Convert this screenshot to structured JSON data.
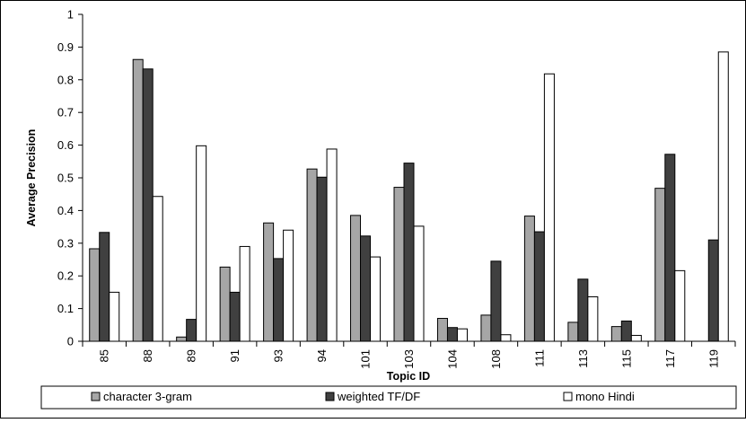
{
  "chart_data": {
    "type": "bar",
    "title": "",
    "xlabel": "Topic ID",
    "ylabel": "Average Precision",
    "ylim": [
      0,
      1
    ],
    "yticks": [
      "0",
      "0.1",
      "0.2",
      "0.3",
      "0.4",
      "0.5",
      "0.6",
      "0.7",
      "0.8",
      "0.9",
      "1"
    ],
    "grid": false,
    "legend_position": "bottom",
    "categories": [
      "85",
      "88",
      "89",
      "91",
      "93",
      "94",
      "101",
      "103",
      "104",
      "108",
      "111",
      "113",
      "115",
      "117",
      "119"
    ],
    "series": [
      {
        "name": "character 3-gram",
        "color": "#a6a6a6",
        "values": [
          0.283,
          0.862,
          0.013,
          0.227,
          0.362,
          0.527,
          0.385,
          0.471,
          0.07,
          0.08,
          0.383,
          0.058,
          0.045,
          0.468,
          0.0
        ]
      },
      {
        "name": "weighted TF/DF",
        "color": "#404040",
        "values": [
          0.333,
          0.833,
          0.067,
          0.15,
          0.253,
          0.502,
          0.322,
          0.545,
          0.042,
          0.245,
          0.335,
          0.19,
          0.062,
          0.572,
          0.31
        ]
      },
      {
        "name": "mono Hindi",
        "color": "#ffffff",
        "values": [
          0.15,
          0.443,
          0.598,
          0.29,
          0.34,
          0.588,
          0.258,
          0.352,
          0.038,
          0.02,
          0.818,
          0.136,
          0.018,
          0.216,
          0.885
        ]
      }
    ]
  }
}
